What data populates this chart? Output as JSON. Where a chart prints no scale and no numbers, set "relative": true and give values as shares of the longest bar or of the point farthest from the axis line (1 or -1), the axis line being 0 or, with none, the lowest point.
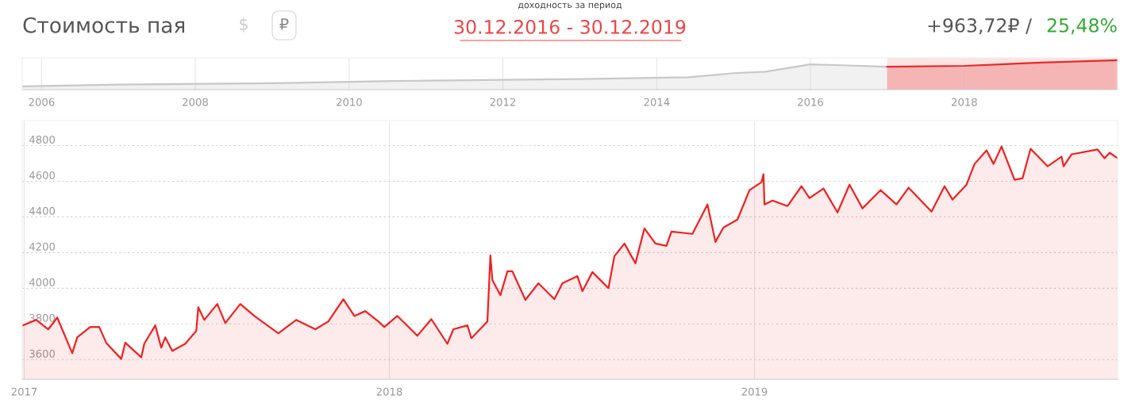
{
  "chart_data": [
    {
      "type": "area",
      "title": "Стоимость пая",
      "subtitle": "доходность за период",
      "annotations": [
        "$",
        "₽",
        "30.12.2016 - 30.12.2019",
        "+963,72₽ /",
        "25,48%"
      ],
      "relative": true,
      "grid": "x",
      "tick_labels": "x",
      "xlim": [
        "2005-10-01",
        "2019-12-30"
      ],
      "xticks": [
        {
          "value": "2006-01-01",
          "label": "2006"
        },
        {
          "value": "2008-01-01",
          "label": "2008"
        },
        {
          "value": "2010-01-01",
          "label": "2010"
        },
        {
          "value": "2012-01-01",
          "label": "2012"
        },
        {
          "value": "2014-01-01",
          "label": "2014"
        },
        {
          "value": "2016-01-01",
          "label": "2016"
        },
        {
          "value": "2018-01-01",
          "label": "2018"
        }
      ],
      "bands": [
        {
          "axis": "x",
          "from": "2016-12-30",
          "to": "2019-12-30",
          "color": "#fde3e3"
        }
      ],
      "series": [
        {
          "color": "#c8c8c8",
          "x": [
            "2005-10-01",
            "2007-01-01",
            "2009-01-01",
            "2011-01-01",
            "2013-01-01",
            "2014-06-01",
            "2015-01-01",
            "2015-06-01",
            "2016-01-01",
            "2016-06-01",
            "2016-12-30"
          ],
          "values": [
            0.11,
            0.17,
            0.22,
            0.31,
            0.36,
            0.42,
            0.56,
            0.61,
            0.86,
            0.83,
            0.78
          ]
        },
        {
          "color": "#e52a2a",
          "x": [
            "2016-12-30",
            "2018-01-01",
            "2019-01-01",
            "2019-12-30"
          ],
          "values": [
            0.78,
            0.81,
            0.92,
            1.0
          ]
        }
      ]
    },
    {
      "type": "area",
      "color": "#ee2222",
      "line_style": "solid",
      "grid": true,
      "xlim": [
        "2016-12-30",
        "2019-12-30"
      ],
      "xticks": [
        {
          "value": "2017-01-01",
          "label": "2017"
        },
        {
          "value": "2018-01-01",
          "label": "2018"
        },
        {
          "value": "2019-01-01",
          "label": "2019"
        }
      ],
      "ylim": [
        3490,
        4940
      ],
      "yticks": [
        3600,
        3800,
        4000,
        4200,
        4400,
        4600,
        4800
      ],
      "x": [
        "2016-12-30",
        "2017-01-13",
        "2017-01-25",
        "2017-02-03",
        "2017-02-18",
        "2017-02-23",
        "2017-03-08",
        "2017-03-17",
        "2017-03-24",
        "2017-04-08",
        "2017-04-12",
        "2017-04-28",
        "2017-05-01",
        "2017-05-12",
        "2017-05-18",
        "2017-05-22",
        "2017-05-29",
        "2017-06-11",
        "2017-06-22",
        "2017-06-24",
        "2017-06-30",
        "2017-07-13",
        "2017-07-21",
        "2017-08-05",
        "2017-08-19",
        "2017-09-12",
        "2017-09-30",
        "2017-10-19",
        "2017-11-01",
        "2017-11-16",
        "2017-11-27",
        "2017-12-08",
        "2017-12-21",
        "2017-12-27",
        "2018-01-09",
        "2018-01-29",
        "2018-02-12",
        "2018-02-28",
        "2018-03-06",
        "2018-03-20",
        "2018-03-24",
        "2018-04-09",
        "2018-04-12",
        "2018-04-14",
        "2018-04-22",
        "2018-04-29",
        "2018-05-04",
        "2018-05-17",
        "2018-05-30",
        "2018-06-15",
        "2018-06-23",
        "2018-07-08",
        "2018-07-13",
        "2018-07-23",
        "2018-08-08",
        "2018-08-14",
        "2018-08-24",
        "2018-09-04",
        "2018-09-13",
        "2018-09-24",
        "2018-10-05",
        "2018-10-10",
        "2018-10-31",
        "2018-11-15",
        "2018-11-23",
        "2018-12-01",
        "2018-12-15",
        "2018-12-27",
        "2019-01-08",
        "2019-01-10",
        "2019-01-11",
        "2019-01-19",
        "2019-02-03",
        "2019-02-17",
        "2019-02-25",
        "2019-03-11",
        "2019-03-25",
        "2019-04-06",
        "2019-04-19",
        "2019-05-07",
        "2019-05-23",
        "2019-06-04",
        "2019-06-27",
        "2019-07-10",
        "2019-07-18",
        "2019-08-01",
        "2019-08-09",
        "2019-08-21",
        "2019-08-28",
        "2019-09-05",
        "2019-09-18",
        "2019-09-26",
        "2019-10-04",
        "2019-10-21",
        "2019-11-04",
        "2019-11-06",
        "2019-11-14",
        "2019-12-10",
        "2019-12-17",
        "2019-12-22",
        "2019-12-30"
      ],
      "values": [
        3790,
        3823,
        3770,
        3836,
        3636,
        3725,
        3783,
        3783,
        3694,
        3604,
        3695,
        3613,
        3689,
        3792,
        3667,
        3725,
        3649,
        3689,
        3761,
        3894,
        3823,
        3912,
        3805,
        3912,
        3845,
        3747,
        3823,
        3770,
        3814,
        3939,
        3845,
        3872,
        3814,
        3783,
        3845,
        3734,
        3827,
        3689,
        3770,
        3792,
        3720,
        3814,
        4184,
        4046,
        3961,
        4095,
        4095,
        3935,
        4028,
        3939,
        4028,
        4068,
        3984,
        4091,
        4001,
        4180,
        4251,
        4140,
        4336,
        4251,
        4238,
        4318,
        4305,
        4470,
        4260,
        4341,
        4385,
        4550,
        4595,
        4639,
        4470,
        4492,
        4461,
        4572,
        4506,
        4559,
        4425,
        4581,
        4448,
        4550,
        4470,
        4564,
        4430,
        4572,
        4497,
        4581,
        4697,
        4773,
        4697,
        4795,
        4608,
        4617,
        4782,
        4684,
        4738,
        4684,
        4751,
        4778,
        4729,
        4760,
        4729
      ]
    }
  ]
}
